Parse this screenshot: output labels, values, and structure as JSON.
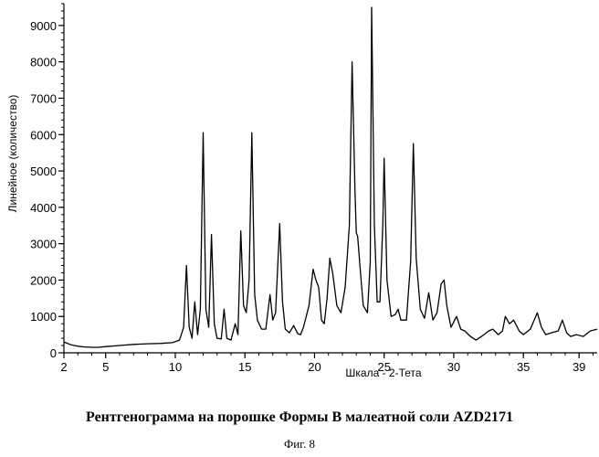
{
  "chart_data": {
    "type": "line",
    "xlabel": "Шкала - 2-Тета",
    "ylabel": "Линейное (количество)",
    "xlim": [
      2,
      40.3
    ],
    "ylim": [
      0,
      9600
    ],
    "x_ticks": [
      2,
      5,
      10,
      15,
      20,
      25,
      30,
      35,
      39
    ],
    "y_ticks": [
      0,
      1000,
      2000,
      3000,
      4000,
      5000,
      6000,
      7000,
      8000,
      9000
    ],
    "x_tick_labels": [
      "2",
      "5",
      "10",
      "15",
      "20",
      "25",
      "30",
      "35",
      "39"
    ],
    "y_tick_labels": [
      "0",
      "1000",
      "2000",
      "3000",
      "4000",
      "5000",
      "6000",
      "7000",
      "8000",
      "9000"
    ],
    "grid": false,
    "series": [
      {
        "color": "#000000",
        "x": [
          2.0,
          2.5,
          3.0,
          3.5,
          4.0,
          4.5,
          5.0,
          6.0,
          7.0,
          8.0,
          9.0,
          9.8,
          10.3,
          10.6,
          10.8,
          11.0,
          11.2,
          11.4,
          11.6,
          11.8,
          12.0,
          12.2,
          12.4,
          12.6,
          12.8,
          13.0,
          13.3,
          13.5,
          13.7,
          14.0,
          14.3,
          14.5,
          14.7,
          14.9,
          15.1,
          15.3,
          15.5,
          15.7,
          15.9,
          16.2,
          16.5,
          16.8,
          17.0,
          17.2,
          17.5,
          17.7,
          17.9,
          18.2,
          18.5,
          18.8,
          19.0,
          19.2,
          19.6,
          19.9,
          20.1,
          20.3,
          20.5,
          20.7,
          20.9,
          21.1,
          21.3,
          21.6,
          21.9,
          22.2,
          22.5,
          22.7,
          22.9,
          23.0,
          23.1,
          23.3,
          23.5,
          23.8,
          24.0,
          24.1,
          24.3,
          24.5,
          24.7,
          24.9,
          25.0,
          25.2,
          25.5,
          25.8,
          26.0,
          26.2,
          26.6,
          26.9,
          27.1,
          27.3,
          27.6,
          27.9,
          28.2,
          28.5,
          28.8,
          29.1,
          29.3,
          29.5,
          29.8,
          30.2,
          30.5,
          30.8,
          31.2,
          31.6,
          32.0,
          32.5,
          32.8,
          33.2,
          33.5,
          33.7,
          34.0,
          34.3,
          34.7,
          35.0,
          35.5,
          36.0,
          36.3,
          36.6,
          37.0,
          37.5,
          37.8,
          38.1,
          38.4,
          38.8,
          39.3,
          39.8,
          40.3
        ],
        "y": [
          300,
          220,
          180,
          160,
          150,
          150,
          170,
          200,
          230,
          250,
          260,
          280,
          350,
          700,
          2400,
          700,
          400,
          1400,
          500,
          1200,
          6050,
          1200,
          700,
          3250,
          800,
          400,
          380,
          1200,
          400,
          350,
          800,
          500,
          3350,
          1300,
          1100,
          2000,
          6050,
          1600,
          900,
          650,
          650,
          1600,
          900,
          1100,
          3550,
          1400,
          650,
          550,
          750,
          520,
          500,
          700,
          1300,
          2300,
          2000,
          1800,
          900,
          800,
          1500,
          2600,
          2200,
          1300,
          1100,
          1800,
          3500,
          8000,
          4500,
          3300,
          3200,
          2200,
          1300,
          1100,
          2500,
          9500,
          3500,
          1400,
          1400,
          3500,
          5350,
          2000,
          1000,
          1050,
          1200,
          900,
          900,
          2500,
          5750,
          2600,
          1200,
          950,
          1650,
          900,
          1100,
          1900,
          2000,
          1300,
          700,
          1000,
          650,
          600,
          450,
          350,
          450,
          600,
          650,
          500,
          600,
          1000,
          800,
          900,
          600,
          500,
          650,
          1100,
          700,
          500,
          550,
          600,
          900,
          550,
          450,
          500,
          450,
          600,
          650
        ]
      }
    ]
  },
  "caption": "Рентгенограмма на порошке Формы В малеатной соли AZD2171",
  "figure_label": "Фиг. 8"
}
